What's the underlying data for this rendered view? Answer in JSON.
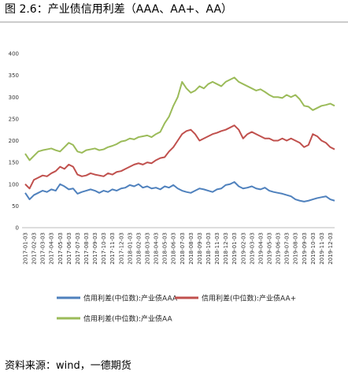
{
  "chart_data": {
    "type": "line",
    "title": "图 2.6：产业债信用利差（AAA、AA+、AA）",
    "source": "资料来源：wind，一德期货",
    "categories": [
      "2017-01-03",
      null,
      "2017-02-03",
      null,
      "2017-03-03",
      null,
      "2017-04-03",
      null,
      "2017-05-03",
      null,
      "2017-06-03",
      null,
      "2017-07-03",
      null,
      "2017-08-03",
      null,
      "2017-09-03",
      null,
      "2017-10-03",
      null,
      "2017-11-03",
      null,
      "2017-12-03",
      null,
      "2018-01-03",
      null,
      "2018-02-03",
      null,
      "2018-03-03",
      null,
      "2018-04-03",
      null,
      "2018-05-03",
      null,
      "2018-06-03",
      null,
      "2018-07-03",
      null,
      "2018-08-03",
      null,
      "2018-09-03",
      null,
      "2018-10-03",
      null,
      "2018-11-03",
      null,
      "2018-12-03",
      null,
      "2019-01-03",
      null,
      "2019-02-03",
      null,
      "2019-03-03",
      null,
      "2019-04-03",
      null,
      "2019-05-03",
      null,
      "2019-06-03",
      null,
      "2019-07-03",
      null,
      "2019-08-03",
      null,
      "2019-09-03",
      null,
      "2019-10-03",
      null,
      "2019-11-03",
      null,
      "2019-12-03",
      null
    ],
    "series": [
      {
        "name": "信用利差(中位数):产业债AAA",
        "color": "#4f81bd",
        "values": [
          80,
          65,
          75,
          80,
          85,
          82,
          88,
          85,
          100,
          95,
          88,
          90,
          78,
          82,
          85,
          88,
          85,
          80,
          85,
          82,
          88,
          85,
          90,
          92,
          98,
          95,
          100,
          92,
          95,
          90,
          92,
          88,
          95,
          92,
          98,
          90,
          85,
          82,
          80,
          85,
          90,
          88,
          85,
          82,
          88,
          90,
          98,
          100,
          105,
          95,
          90,
          92,
          95,
          90,
          88,
          92,
          85,
          82,
          80,
          78,
          75,
          72,
          65,
          62,
          60,
          62,
          65,
          68,
          70,
          72,
          65,
          62
        ]
      },
      {
        "name": "信用利差(中位数):产业债AA+",
        "color": "#c0504d",
        "values": [
          100,
          90,
          110,
          115,
          120,
          118,
          125,
          130,
          140,
          135,
          145,
          140,
          122,
          118,
          120,
          125,
          122,
          120,
          118,
          125,
          122,
          128,
          130,
          135,
          140,
          145,
          148,
          145,
          150,
          148,
          155,
          160,
          162,
          175,
          185,
          200,
          215,
          222,
          225,
          215,
          200,
          205,
          210,
          215,
          218,
          222,
          225,
          230,
          235,
          225,
          205,
          215,
          220,
          215,
          210,
          205,
          205,
          200,
          200,
          205,
          200,
          205,
          200,
          195,
          185,
          190,
          215,
          210,
          200,
          195,
          185,
          180
        ]
      },
      {
        "name": "信用利差(中位数):产业债AA",
        "color": "#9bbb59",
        "values": [
          170,
          155,
          165,
          175,
          178,
          180,
          182,
          178,
          175,
          185,
          195,
          190,
          175,
          172,
          178,
          180,
          182,
          178,
          180,
          185,
          188,
          192,
          198,
          200,
          205,
          203,
          208,
          210,
          212,
          208,
          215,
          220,
          240,
          255,
          280,
          300,
          335,
          320,
          310,
          315,
          325,
          320,
          330,
          335,
          330,
          325,
          335,
          340,
          345,
          335,
          330,
          325,
          320,
          315,
          318,
          312,
          305,
          300,
          300,
          298,
          305,
          300,
          305,
          295,
          280,
          278,
          270,
          275,
          280,
          282,
          285,
          280
        ]
      }
    ],
    "ylim": [
      0,
      400
    ],
    "yticks": [
      0,
      50,
      100,
      150,
      200,
      250,
      300,
      350,
      400
    ]
  }
}
